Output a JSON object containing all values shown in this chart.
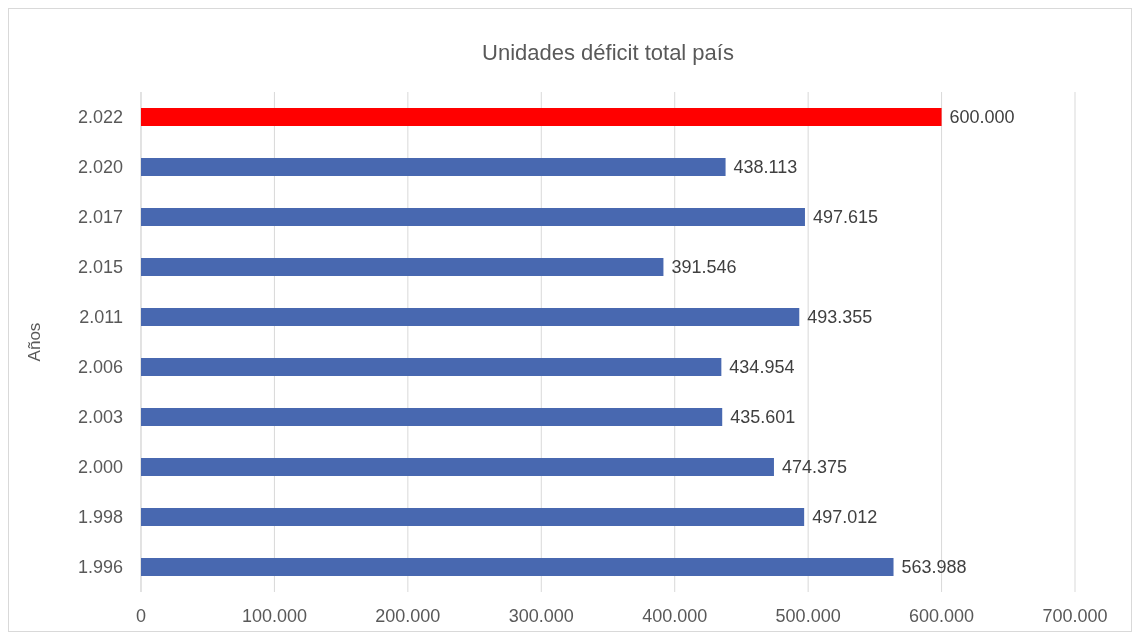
{
  "chart_data": {
    "type": "bar",
    "orientation": "horizontal",
    "title": "Unidades déficit total país",
    "ylabel": "Años",
    "categories": [
      "2.022",
      "2.020",
      "2.017",
      "2.015",
      "2.011",
      "2.006",
      "2.003",
      "2.000",
      "1.998",
      "1.996"
    ],
    "values": [
      600000,
      438113,
      497615,
      391546,
      493355,
      434954,
      435601,
      474375,
      497012,
      563988
    ],
    "colors": [
      "#ff0000",
      "#4868b0",
      "#4868b0",
      "#4868b0",
      "#4868b0",
      "#4868b0",
      "#4868b0",
      "#4868b0",
      "#4868b0",
      "#4868b0"
    ],
    "value_labels": [
      "600.000",
      "438.113",
      "497.615",
      "391.546",
      "493.355",
      "434.954",
      "435.601",
      "474.375",
      "497.012",
      "563.988"
    ],
    "xlim": [
      0,
      700000
    ],
    "xticks": [
      0,
      {
        "value": 100000,
        "label": "100.000"
      },
      {
        "value": 200000,
        "label": "200.000"
      },
      {
        "value": 300000,
        "label": "300.000"
      },
      {
        "value": 400000,
        "label": "400.000"
      },
      {
        "value": 500000,
        "label": "500.000"
      },
      {
        "value": 600000,
        "label": "600.000"
      },
      {
        "value": 700000,
        "label": "700.000"
      }
    ],
    "grid": "x"
  }
}
